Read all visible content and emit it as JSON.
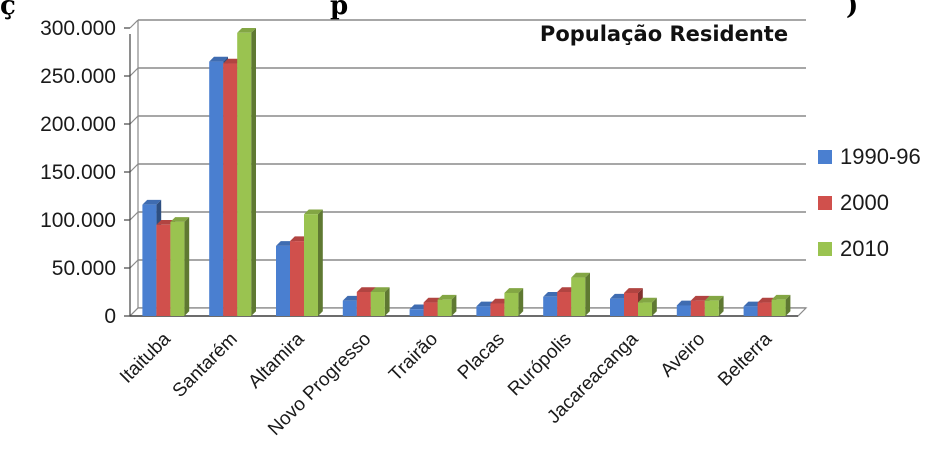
{
  "header_fragment": {
    "left": "ç",
    "middle": "p",
    "right": ")"
  },
  "chart_data": {
    "type": "bar",
    "title": "População Residente",
    "xlabel": "",
    "ylabel": "",
    "ylim": [
      0,
      300000
    ],
    "ytick_values": [
      0,
      50000,
      100000,
      150000,
      200000,
      250000,
      300000
    ],
    "ytick_labels": [
      "0",
      "50.000",
      "100.000",
      "150.000",
      "200.000",
      "250.000",
      "300.000"
    ],
    "grid": true,
    "legend_position": "right",
    "categories": [
      "Itaituba",
      "Santarém",
      "Altamira",
      "Novo Progresso",
      "Trairão",
      "Placas",
      "Rurópolis",
      "Jacareacanga",
      "Aveiro",
      "Belterra"
    ],
    "series": [
      {
        "name": "1990-96",
        "color": "#4a7fd0",
        "values": [
          116000,
          265000,
          73000,
          16000,
          7000,
          10000,
          20000,
          18000,
          11000,
          10000
        ]
      },
      {
        "name": "2000",
        "color": "#d0504c",
        "values": [
          95000,
          263000,
          78000,
          25000,
          14000,
          13000,
          25000,
          24000,
          16000,
          14000
        ]
      },
      {
        "name": "2010",
        "color": "#9ac350",
        "values": [
          98000,
          295000,
          106000,
          25000,
          17000,
          24000,
          40000,
          14000,
          16000,
          17000
        ]
      }
    ]
  }
}
